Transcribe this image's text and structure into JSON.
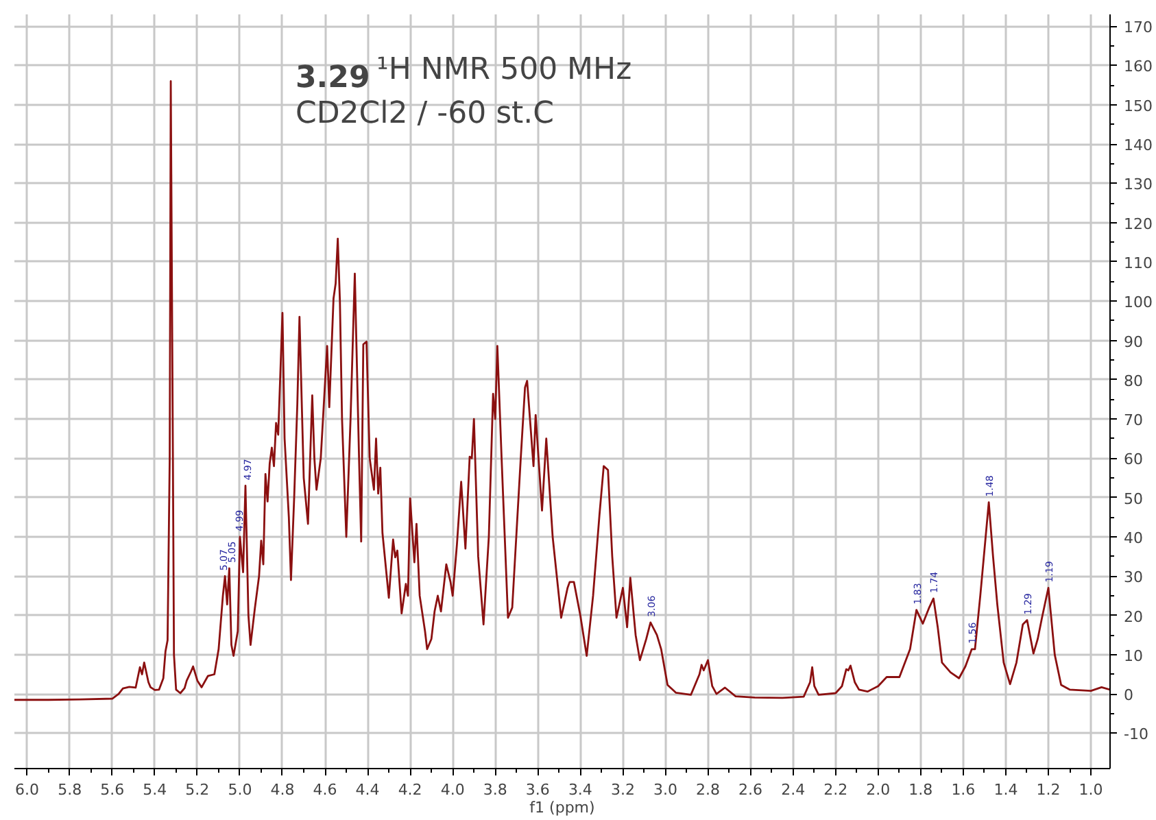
{
  "chart_data": {
    "type": "line",
    "xlabel": "f1 (ppm)",
    "xlim": [
      6.06,
      0.91
    ],
    "ylim": [
      -19,
      173
    ],
    "xticks": [
      {
        "value": 6,
        "label": "6.0"
      },
      5.8,
      5.6,
      5.4,
      5.2,
      {
        "value": 5,
        "label": "5.0"
      },
      4.8,
      4.6,
      4.4,
      4.2,
      {
        "value": 4,
        "label": "4.0"
      },
      3.8,
      3.6,
      3.4,
      3.2,
      {
        "value": 3,
        "label": "3.0"
      },
      2.8,
      2.6,
      2.4,
      2.2,
      {
        "value": 2,
        "label": "2.0"
      },
      1.8,
      1.6,
      1.4,
      1.2,
      {
        "value": 1,
        "label": "1.0"
      }
    ],
    "yticks": [
      -10,
      0,
      10,
      20,
      30,
      40,
      50,
      60,
      70,
      80,
      90,
      100,
      110,
      120,
      130,
      140,
      150,
      160,
      170
    ],
    "grid": true,
    "marker": "none",
    "line_style": "solid",
    "annotations": [
      "3.29",
      "¹H NMR 500 MHz",
      "CD2Cl2 / -60 st.C",
      {
        "text": "5.07",
        "x": 5.07,
        "y": 30
      },
      {
        "text": "5.05",
        "x": 5.05,
        "y": 32
      },
      {
        "text": "4.99",
        "x": 5.0,
        "y": 40
      },
      {
        "text": "4.97",
        "x": 4.974,
        "y": 53
      },
      {
        "text": "3.06",
        "x": 3.07,
        "y": 18.2
      },
      {
        "text": "1.83",
        "x": 1.82,
        "y": 21.4
      },
      {
        "text": "1.74",
        "x": 1.74,
        "y": 24.3
      },
      {
        "text": "1.56",
        "x": 1.56,
        "y": 11.4
      },
      {
        "text": "1.48",
        "x": 1.48,
        "y": 48.8
      },
      {
        "text": "1.29",
        "x": 1.3,
        "y": 18.8
      },
      {
        "text": "1.19",
        "x": 1.2,
        "y": 27
      }
    ],
    "series": [
      {
        "color": "#8b1010",
        "x": [
          6.06,
          5.9,
          5.75,
          5.6,
          5.57,
          5.55,
          5.52,
          5.49,
          5.47,
          5.46,
          5.45,
          5.43,
          5.42,
          5.4,
          5.38,
          5.36,
          5.35,
          5.34,
          5.33,
          5.325,
          5.315,
          5.31,
          5.3,
          5.28,
          5.26,
          5.25,
          5.23,
          5.22,
          5.2,
          5.18,
          5.15,
          5.12,
          5.1,
          5.08,
          5.07,
          5.06,
          5.05,
          5.04,
          5.03,
          5.01,
          5.0,
          4.985,
          4.974,
          4.96,
          4.95,
          4.93,
          4.91,
          4.9,
          4.89,
          4.88,
          4.87,
          4.86,
          4.85,
          4.84,
          4.83,
          4.82,
          4.8,
          4.79,
          4.785,
          4.77,
          4.76,
          4.745,
          4.73,
          4.72,
          4.7,
          4.68,
          4.66,
          4.65,
          4.64,
          4.62,
          4.59,
          4.58,
          4.56,
          4.55,
          4.54,
          4.53,
          4.52,
          4.5,
          4.48,
          4.46,
          4.44,
          4.43,
          4.42,
          4.405,
          4.39,
          4.37,
          4.36,
          4.35,
          4.34,
          4.33,
          4.3,
          4.28,
          4.27,
          4.26,
          4.24,
          4.22,
          4.21,
          4.2,
          4.18,
          4.17,
          4.155,
          4.13,
          4.12,
          4.1,
          4.085,
          4.07,
          4.055,
          4.03,
          4.01,
          4.0,
          3.98,
          3.96,
          3.94,
          3.92,
          3.91,
          3.9,
          3.88,
          3.855,
          3.83,
          3.81,
          3.8,
          3.79,
          3.77,
          3.74,
          3.72,
          3.7,
          3.68,
          3.66,
          3.65,
          3.62,
          3.61,
          3.58,
          3.56,
          3.53,
          3.49,
          3.46,
          3.45,
          3.43,
          3.4,
          3.37,
          3.34,
          3.31,
          3.29,
          3.27,
          3.25,
          3.23,
          3.2,
          3.18,
          3.165,
          3.14,
          3.12,
          3.09,
          3.07,
          3.04,
          3.02,
          2.99,
          2.95,
          2.88,
          2.84,
          2.83,
          2.82,
          2.8,
          2.78,
          2.76,
          2.72,
          2.67,
          2.58,
          2.45,
          2.35,
          2.32,
          2.31,
          2.3,
          2.28,
          2.2,
          2.17,
          2.15,
          2.14,
          2.13,
          2.11,
          2.09,
          2.05,
          2.0,
          1.96,
          1.9,
          1.85,
          1.82,
          1.79,
          1.76,
          1.74,
          1.72,
          1.7,
          1.66,
          1.62,
          1.59,
          1.56,
          1.545,
          1.52,
          1.48,
          1.46,
          1.44,
          1.41,
          1.38,
          1.35,
          1.32,
          1.3,
          1.27,
          1.25,
          1.23,
          1.2,
          1.17,
          1.14,
          1.1,
          1.0,
          0.95,
          0.91
        ],
        "values": [
          -1.5,
          -1.5,
          -1.4,
          -1.2,
          0,
          1.4,
          1.8,
          1.6,
          6.8,
          5,
          8,
          3,
          1.7,
          1.0,
          1.1,
          4,
          10.8,
          13.7,
          60,
          156,
          60,
          10,
          1.1,
          0.2,
          1.5,
          3.4,
          5.7,
          7,
          3.4,
          1.7,
          4.6,
          5,
          11.4,
          25,
          30,
          22.8,
          32,
          12.5,
          9.7,
          16,
          40,
          31,
          53,
          20,
          12.5,
          21.7,
          30,
          39,
          33,
          56,
          49,
          58.7,
          62.7,
          58,
          69,
          66,
          97,
          65,
          60,
          45,
          29,
          50,
          74,
          96,
          55,
          43.3,
          76,
          60,
          52,
          60,
          88.6,
          73,
          100.7,
          104.5,
          115.9,
          100,
          70,
          40,
          70,
          107,
          60,
          38.8,
          89,
          89.7,
          60,
          52,
          65,
          51,
          57.6,
          41,
          24.5,
          39.3,
          34.8,
          36.5,
          20.5,
          28,
          25,
          49.8,
          33.5,
          43.3,
          25,
          16,
          11.4,
          14,
          21,
          25,
          21,
          33,
          28.5,
          25,
          38,
          54,
          37,
          60.4,
          60,
          70,
          35,
          17.7,
          40,
          76.4,
          70,
          88.6,
          60,
          19.4,
          22,
          41,
          60,
          78,
          79.7,
          58,
          71,
          46.7,
          65,
          40,
          19.4,
          27,
          28.5,
          28.5,
          20,
          9.7,
          25,
          45.6,
          58,
          57,
          35,
          19.4,
          27,
          17,
          29.6,
          15,
          8.6,
          14,
          18.2,
          15,
          11.4,
          2.3,
          0.3,
          -0.2,
          5,
          7.4,
          6,
          8.6,
          2,
          0,
          1.6,
          -0.6,
          -0.9,
          -1,
          -0.7,
          3,
          6.8,
          2,
          -0.2,
          0.2,
          2,
          6.3,
          6,
          7.2,
          3,
          1.1,
          0.6,
          2,
          4.3,
          4.3,
          11.4,
          21.4,
          17.9,
          22,
          24.3,
          17,
          8,
          5.5,
          4,
          7,
          11.4,
          11.4,
          25,
          48.8,
          35,
          22.8,
          8,
          2.5,
          8,
          17.7,
          18.8,
          10.3,
          14,
          19.4,
          27,
          10,
          2.3,
          1.1,
          0.8,
          1.7,
          1.1
        ]
      }
    ]
  }
}
